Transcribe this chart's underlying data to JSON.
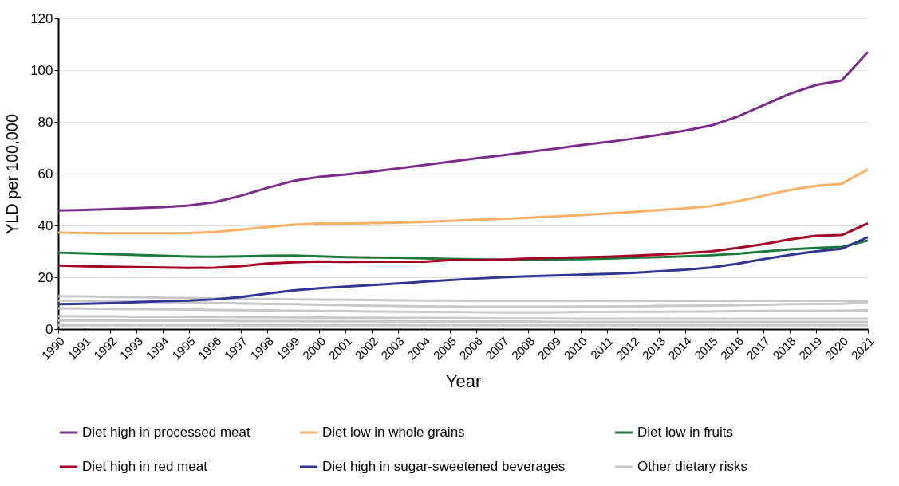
{
  "chart_data": {
    "type": "line",
    "xlabel": "Year",
    "ylabel": "YLD per 100,000",
    "categories": [
      "1990",
      "1991",
      "1992",
      "1993",
      "1994",
      "1995",
      "1996",
      "1997",
      "1998",
      "1999",
      "2000",
      "2001",
      "2002",
      "2003",
      "2004",
      "2005",
      "2006",
      "2007",
      "2008",
      "2009",
      "2010",
      "2011",
      "2012",
      "2013",
      "2014",
      "2015",
      "2016",
      "2017",
      "2018",
      "2019",
      "2020",
      "2021"
    ],
    "ylim": [
      0,
      120
    ],
    "yticks": [
      0,
      20,
      40,
      60,
      80,
      100,
      120
    ],
    "grid": "y",
    "legend": "bottom",
    "line_style": "solid",
    "series": [
      {
        "color": "#c8c8c8",
        "values": [
          12.7,
          12.6,
          12.4,
          12.3,
          12.1,
          12.0,
          11.8,
          11.7,
          11.6,
          11.5,
          11.4,
          11.3,
          11.2,
          11.1,
          11.0,
          11.0,
          10.9,
          10.9,
          10.9,
          10.9,
          10.9,
          10.9,
          10.9,
          10.9,
          10.9,
          10.9,
          10.9,
          10.9,
          10.9,
          10.9,
          10.9,
          10.8
        ]
      },
      {
        "color": "#c8c8c8",
        "values": [
          11.0,
          10.9,
          10.8,
          10.6,
          10.4,
          10.3,
          10.1,
          9.9,
          9.7,
          9.6,
          9.4,
          9.2,
          9.0,
          8.9,
          8.8,
          8.7,
          8.6,
          8.6,
          8.6,
          8.6,
          8.7,
          8.7,
          8.8,
          8.9,
          9.0,
          9.1,
          9.2,
          9.4,
          9.6,
          9.7,
          9.8,
          10.4
        ]
      },
      {
        "color": "#c8c8c8",
        "values": [
          8.0,
          7.9,
          7.8,
          7.7,
          7.6,
          7.5,
          7.4,
          7.3,
          7.2,
          7.1,
          7.0,
          6.9,
          6.8,
          6.7,
          6.6,
          6.6,
          6.5,
          6.5,
          6.5,
          6.5,
          6.6,
          6.6,
          6.7,
          6.7,
          6.8,
          6.8,
          6.9,
          7.0,
          7.0,
          7.0,
          7.1,
          7.2
        ]
      },
      {
        "color": "#c8c8c8",
        "values": [
          5.0,
          4.9,
          4.9,
          4.8,
          4.8,
          4.7,
          4.7,
          4.6,
          4.6,
          4.5,
          4.5,
          4.4,
          4.4,
          4.3,
          4.3,
          4.2,
          4.2,
          4.1,
          4.1,
          4.1,
          4.0,
          4.0,
          4.0,
          4.0,
          4.0,
          4.0,
          4.0,
          4.0,
          4.0,
          4.0,
          4.0,
          4.0
        ]
      },
      {
        "color": "#c8c8c8",
        "values": [
          3.3,
          3.3,
          3.3,
          3.2,
          3.2,
          3.2,
          3.2,
          3.1,
          3.1,
          3.1,
          3.0,
          3.0,
          3.0,
          3.0,
          2.9,
          2.9,
          2.9,
          2.9,
          2.9,
          2.8,
          2.8,
          2.8,
          2.8,
          2.8,
          2.8,
          2.8,
          2.8,
          2.8,
          2.8,
          2.8,
          2.8,
          2.8
        ]
      },
      {
        "name": "Diet high in processed meat",
        "color": "#7b2a8b",
        "values": [
          45.8,
          46.0,
          46.3,
          46.7,
          47.1,
          47.7,
          49.0,
          51.5,
          54.5,
          57.2,
          58.8,
          59.7,
          60.8,
          62.0,
          63.3,
          64.6,
          65.9,
          67.1,
          68.4,
          69.6,
          71.0,
          72.2,
          73.5,
          75.0,
          76.6,
          78.6,
          82.0,
          86.4,
          90.8,
          94.2,
          96.0,
          107.0
        ]
      },
      {
        "name": "Diet low in whole grains",
        "color": "#fdae61",
        "values": [
          37.2,
          37.1,
          37.0,
          37.0,
          37.0,
          37.1,
          37.5,
          38.4,
          39.4,
          40.3,
          40.8,
          40.7,
          40.9,
          41.1,
          41.4,
          41.8,
          42.2,
          42.5,
          43.0,
          43.5,
          44.0,
          44.6,
          45.2,
          45.9,
          46.6,
          47.5,
          49.3,
          51.5,
          53.7,
          55.3,
          56.1,
          61.7
        ]
      },
      {
        "name": "Diet low in fruits",
        "color": "#1a7a3a",
        "values": [
          29.5,
          29.2,
          28.9,
          28.6,
          28.3,
          28.0,
          27.9,
          28.1,
          28.3,
          28.4,
          28.1,
          27.8,
          27.6,
          27.5,
          27.3,
          27.1,
          26.9,
          26.8,
          26.8,
          26.9,
          27.0,
          27.2,
          27.5,
          27.8,
          28.1,
          28.5,
          29.1,
          29.9,
          30.8,
          31.3,
          31.7,
          34.2
        ]
      },
      {
        "name": "Diet high in red meat",
        "color": "#a50026",
        "values": [
          24.5,
          24.2,
          24.1,
          23.9,
          23.8,
          23.6,
          23.7,
          24.3,
          25.3,
          25.8,
          26.1,
          25.9,
          26.0,
          26.0,
          26.0,
          26.6,
          26.6,
          26.8,
          27.2,
          27.5,
          27.7,
          27.9,
          28.3,
          28.8,
          29.3,
          30.0,
          31.3,
          32.8,
          34.6,
          36.0,
          36.3,
          40.8
        ]
      },
      {
        "name": "Diet high in sugar-sweetened beverages",
        "color": "#313695",
        "values": [
          9.6,
          9.8,
          10.0,
          10.4,
          10.8,
          11.0,
          11.5,
          12.4,
          13.7,
          14.9,
          15.8,
          16.4,
          17.0,
          17.6,
          18.3,
          18.9,
          19.5,
          20.0,
          20.4,
          20.7,
          21.0,
          21.3,
          21.7,
          22.3,
          22.9,
          23.8,
          25.2,
          27.0,
          28.6,
          30.0,
          31.0,
          35.5
        ]
      },
      {
        "name": "Other dietary risks",
        "color": "#c8c8c8",
        "values": [
          1.5,
          1.5,
          1.5,
          1.5,
          1.5,
          1.5,
          1.5,
          1.5,
          1.5,
          1.5,
          1.5,
          1.5,
          1.5,
          1.5,
          1.5,
          1.5,
          1.5,
          1.5,
          1.5,
          1.5,
          1.5,
          1.5,
          1.5,
          1.5,
          1.5,
          1.5,
          1.5,
          1.5,
          1.5,
          1.5,
          1.5,
          1.5
        ]
      }
    ]
  }
}
